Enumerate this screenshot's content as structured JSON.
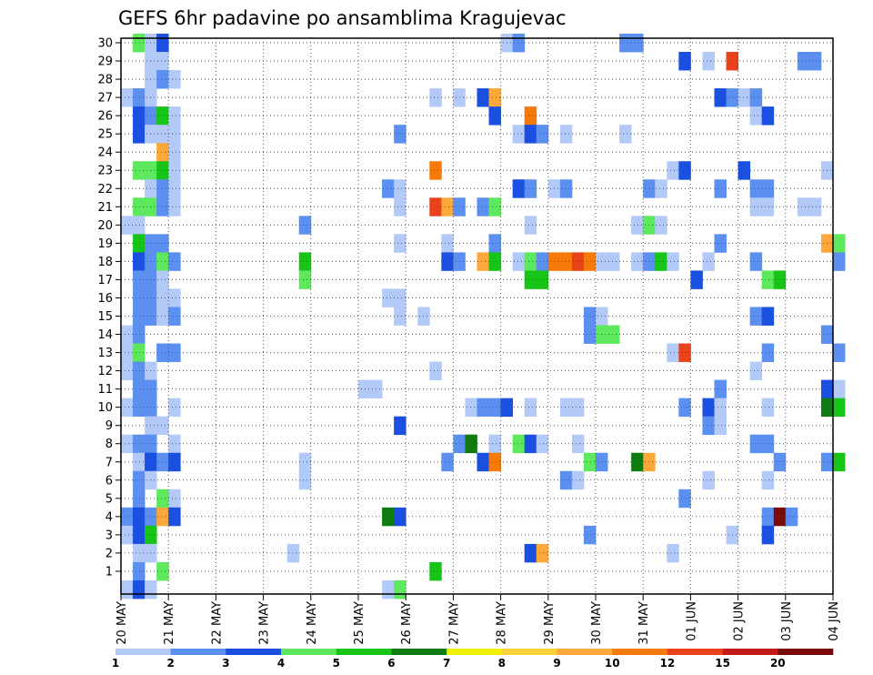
{
  "chart_data": {
    "type": "heatmap",
    "title": "GEFS 6hr padavine po ansamblima Kragujevac",
    "y_ticks": [
      "1",
      "2",
      "3",
      "4",
      "5",
      "6",
      "7",
      "8",
      "9",
      "10",
      "11",
      "12",
      "13",
      "14",
      "15",
      "16",
      "17",
      "18",
      "19",
      "20",
      "21",
      "22",
      "23",
      "24",
      "25",
      "26",
      "27",
      "28",
      "29",
      "30"
    ],
    "x_ticks": [
      "20 MAY",
      "21 MAY",
      "22 MAY",
      "23 MAY",
      "24 MAY",
      "25 MAY",
      "26 MAY",
      "27 MAY",
      "28 MAY",
      "29 MAY",
      "30 MAY",
      "31 MAY",
      "01 JUN",
      "02 JUN",
      "03 JUN",
      "04 JUN"
    ],
    "x_range": [
      "2024-05-20 00Z",
      "2024-06-04 00Z"
    ],
    "y_range": [
      0,
      30
    ],
    "time_step_hours": 6,
    "grid": "dotted",
    "legend_position": "bottom",
    "colorbar": {
      "labels": [
        "1",
        "2",
        "3",
        "4",
        "5",
        "6",
        "7",
        "8",
        "9",
        "10",
        "12",
        "15",
        "20"
      ],
      "colors": [
        "#b3c9f7",
        "#5b8ff0",
        "#1b4fe0",
        "#5ee85e",
        "#17c417",
        "#0f7a0f",
        "#f0f000",
        "#fcd23a",
        "#fca83a",
        "#f57a0a",
        "#e8431a",
        "#c41a1a",
        "#7a0a0a"
      ]
    },
    "cells": [
      [
        30,
        "20 MAY 06Z",
        4
      ],
      [
        30,
        "20 MAY 12Z",
        1
      ],
      [
        30,
        "20 MAY 18Z",
        3
      ],
      [
        30,
        "28 MAY 00Z",
        1
      ],
      [
        30,
        "28 MAY 06Z",
        2
      ],
      [
        30,
        "30 MAY 12Z",
        2
      ],
      [
        30,
        "30 MAY 18Z",
        2
      ],
      [
        29,
        "20 MAY 12Z",
        1
      ],
      [
        29,
        "20 MAY 18Z",
        1
      ],
      [
        29,
        "31 MAY 18Z",
        3
      ],
      [
        29,
        "01 JUN 06Z",
        1
      ],
      [
        29,
        "01 JUN 18Z",
        13
      ],
      [
        29,
        "03 JUN 06Z",
        2
      ],
      [
        29,
        "03 JUN 12Z",
        2
      ],
      [
        28,
        "20 MAY 12Z",
        1
      ],
      [
        28,
        "20 MAY 18Z",
        2
      ],
      [
        28,
        "21 MAY 00Z",
        1
      ],
      [
        27,
        "20 MAY 00Z",
        1
      ],
      [
        27,
        "20 MAY 06Z",
        2
      ],
      [
        27,
        "20 MAY 12Z",
        1
      ],
      [
        27,
        "26 MAY 12Z",
        1
      ],
      [
        27,
        "27 MAY 00Z",
        1
      ],
      [
        27,
        "27 MAY 12Z",
        3
      ],
      [
        27,
        "27 MAY 18Z",
        9
      ],
      [
        27,
        "01 JUN 12Z",
        3
      ],
      [
        27,
        "01 JUN 18Z",
        2
      ],
      [
        27,
        "02 JUN 00Z",
        1
      ],
      [
        27,
        "02 JUN 06Z",
        2
      ],
      [
        26,
        "20 MAY 06Z",
        3
      ],
      [
        26,
        "20 MAY 12Z",
        2
      ],
      [
        26,
        "20 MAY 18Z",
        5
      ],
      [
        26,
        "21 MAY 00Z",
        1
      ],
      [
        26,
        "27 MAY 18Z",
        3
      ],
      [
        26,
        "28 MAY 12Z",
        10
      ],
      [
        26,
        "02 JUN 06Z",
        1
      ],
      [
        26,
        "02 JUN 12Z",
        3
      ],
      [
        25,
        "20 MAY 06Z",
        3
      ],
      [
        25,
        "20 MAY 12Z",
        1
      ],
      [
        25,
        "20 MAY 18Z",
        1
      ],
      [
        25,
        "21 MAY 00Z",
        1
      ],
      [
        25,
        "25 MAY 18Z",
        2
      ],
      [
        25,
        "28 MAY 06Z",
        1
      ],
      [
        25,
        "28 MAY 12Z",
        3
      ],
      [
        25,
        "28 MAY 18Z",
        2
      ],
      [
        25,
        "29 MAY 06Z",
        1
      ],
      [
        25,
        "30 MAY 12Z",
        1
      ],
      [
        24,
        "20 MAY 18Z",
        9
      ],
      [
        24,
        "21 MAY 00Z",
        1
      ],
      [
        23,
        "20 MAY 06Z",
        4
      ],
      [
        23,
        "20 MAY 12Z",
        4
      ],
      [
        23,
        "20 MAY 18Z",
        5
      ],
      [
        23,
        "21 MAY 00Z",
        1
      ],
      [
        23,
        "26 MAY 12Z",
        10
      ],
      [
        23,
        "31 MAY 12Z",
        1
      ],
      [
        23,
        "31 MAY 18Z",
        3
      ],
      [
        23,
        "02 JUN 00Z",
        3
      ],
      [
        23,
        "03 JUN 18Z",
        1
      ],
      [
        22,
        "20 MAY 12Z",
        1
      ],
      [
        22,
        "20 MAY 18Z",
        2
      ],
      [
        22,
        "21 MAY 00Z",
        1
      ],
      [
        22,
        "25 MAY 12Z",
        2
      ],
      [
        22,
        "25 MAY 18Z",
        1
      ],
      [
        22,
        "28 MAY 06Z",
        3
      ],
      [
        22,
        "28 MAY 12Z",
        2
      ],
      [
        22,
        "29 MAY 00Z",
        1
      ],
      [
        22,
        "29 MAY 06Z",
        2
      ],
      [
        22,
        "31 MAY 00Z",
        2
      ],
      [
        22,
        "31 MAY 06Z",
        1
      ],
      [
        22,
        "01 JUN 12Z",
        2
      ],
      [
        22,
        "02 JUN 06Z",
        2
      ],
      [
        22,
        "02 JUN 12Z",
        2
      ],
      [
        21,
        "20 MAY 06Z",
        4
      ],
      [
        21,
        "20 MAY 12Z",
        4
      ],
      [
        21,
        "20 MAY 18Z",
        2
      ],
      [
        21,
        "21 MAY 00Z",
        1
      ],
      [
        21,
        "25 MAY 18Z",
        1
      ],
      [
        21,
        "26 MAY 12Z",
        12
      ],
      [
        21,
        "26 MAY 18Z",
        9
      ],
      [
        21,
        "27 MAY 00Z",
        2
      ],
      [
        21,
        "27 MAY 12Z",
        2
      ],
      [
        21,
        "27 MAY 18Z",
        4
      ],
      [
        21,
        "02 JUN 06Z",
        1
      ],
      [
        21,
        "02 JUN 12Z",
        1
      ],
      [
        21,
        "03 JUN 06Z",
        1
      ],
      [
        21,
        "03 JUN 12Z",
        1
      ],
      [
        20,
        "20 MAY 00Z",
        1
      ],
      [
        20,
        "20 MAY 06Z",
        1
      ],
      [
        20,
        "23 MAY 18Z",
        2
      ],
      [
        20,
        "28 MAY 12Z",
        1
      ],
      [
        20,
        "30 MAY 18Z",
        1
      ],
      [
        20,
        "31 MAY 00Z",
        4
      ],
      [
        20,
        "31 MAY 06Z",
        1
      ],
      [
        19,
        "20 MAY 06Z",
        5
      ],
      [
        19,
        "20 MAY 12Z",
        2
      ],
      [
        19,
        "20 MAY 18Z",
        2
      ],
      [
        19,
        "25 MAY 18Z",
        1
      ],
      [
        19,
        "26 MAY 18Z",
        1
      ],
      [
        19,
        "27 MAY 18Z",
        2
      ],
      [
        19,
        "01 JUN 12Z",
        2
      ],
      [
        19,
        "03 JUN 18Z",
        9
      ],
      [
        19,
        "04 JUN 00Z",
        4
      ],
      [
        18,
        "20 MAY 06Z",
        3
      ],
      [
        18,
        "20 MAY 12Z",
        2
      ],
      [
        18,
        "20 MAY 18Z",
        4
      ],
      [
        18,
        "21 MAY 00Z",
        2
      ],
      [
        18,
        "23 MAY 18Z",
        5
      ],
      [
        18,
        "26 MAY 18Z",
        3
      ],
      [
        18,
        "27 MAY 00Z",
        2
      ],
      [
        18,
        "27 MAY 12Z",
        9
      ],
      [
        18,
        "27 MAY 18Z",
        5
      ],
      [
        18,
        "28 MAY 06Z",
        1
      ],
      [
        18,
        "28 MAY 12Z",
        4
      ],
      [
        18,
        "28 MAY 18Z",
        2
      ],
      [
        18,
        "29 MAY 00Z",
        10
      ],
      [
        18,
        "29 MAY 06Z",
        10
      ],
      [
        18,
        "29 MAY 12Z",
        13
      ],
      [
        18,
        "29 MAY 18Z",
        10
      ],
      [
        18,
        "30 MAY 00Z",
        1
      ],
      [
        18,
        "30 MAY 06Z",
        1
      ],
      [
        18,
        "30 MAY 18Z",
        1
      ],
      [
        18,
        "31 MAY 00Z",
        2
      ],
      [
        18,
        "31 MAY 06Z",
        5
      ],
      [
        18,
        "31 MAY 12Z",
        1
      ],
      [
        18,
        "01 JUN 06Z",
        1
      ],
      [
        18,
        "02 JUN 06Z",
        2
      ],
      [
        18,
        "04 JUN 00Z",
        2
      ],
      [
        17,
        "20 MAY 06Z",
        2
      ],
      [
        17,
        "20 MAY 12Z",
        2
      ],
      [
        17,
        "20 MAY 18Z",
        1
      ],
      [
        17,
        "23 MAY 18Z",
        4
      ],
      [
        17,
        "28 MAY 12Z",
        5
      ],
      [
        17,
        "28 MAY 18Z",
        5
      ],
      [
        17,
        "01 JUN 00Z",
        3
      ],
      [
        17,
        "02 JUN 12Z",
        4
      ],
      [
        17,
        "02 JUN 18Z",
        5
      ],
      [
        16,
        "20 MAY 06Z",
        2
      ],
      [
        16,
        "20 MAY 12Z",
        2
      ],
      [
        16,
        "20 MAY 18Z",
        1
      ],
      [
        16,
        "21 MAY 00Z",
        1
      ],
      [
        16,
        "25 MAY 12Z",
        1
      ],
      [
        16,
        "25 MAY 18Z",
        1
      ],
      [
        15,
        "20 MAY 06Z",
        2
      ],
      [
        15,
        "20 MAY 12Z",
        2
      ],
      [
        15,
        "20 MAY 18Z",
        1
      ],
      [
        15,
        "21 MAY 00Z",
        2
      ],
      [
        15,
        "25 MAY 18Z",
        1
      ],
      [
        15,
        "26 MAY 06Z",
        1
      ],
      [
        15,
        "29 MAY 18Z",
        2
      ],
      [
        15,
        "30 MAY 00Z",
        1
      ],
      [
        15,
        "02 JUN 06Z",
        2
      ],
      [
        15,
        "02 JUN 12Z",
        3
      ],
      [
        14,
        "20 MAY 00Z",
        1
      ],
      [
        14,
        "20 MAY 06Z",
        2
      ],
      [
        14,
        "29 MAY 18Z",
        2
      ],
      [
        14,
        "30 MAY 00Z",
        4
      ],
      [
        14,
        "30 MAY 06Z",
        4
      ],
      [
        14,
        "03 JUN 18Z",
        2
      ],
      [
        13,
        "20 MAY 00Z",
        1
      ],
      [
        13,
        "20 MAY 06Z",
        4
      ],
      [
        13,
        "20 MAY 18Z",
        2
      ],
      [
        13,
        "21 MAY 00Z",
        2
      ],
      [
        13,
        "31 MAY 12Z",
        1
      ],
      [
        13,
        "31 MAY 18Z",
        12
      ],
      [
        13,
        "02 JUN 12Z",
        2
      ],
      [
        13,
        "04 JUN 00Z",
        2
      ],
      [
        12,
        "20 MAY 00Z",
        1
      ],
      [
        12,
        "20 MAY 06Z",
        2
      ],
      [
        12,
        "20 MAY 12Z",
        1
      ],
      [
        12,
        "26 MAY 12Z",
        1
      ],
      [
        12,
        "02 JUN 06Z",
        1
      ],
      [
        11,
        "20 MAY 06Z",
        2
      ],
      [
        11,
        "20 MAY 12Z",
        2
      ],
      [
        11,
        "25 MAY 00Z",
        1
      ],
      [
        11,
        "25 MAY 06Z",
        1
      ],
      [
        11,
        "01 JUN 12Z",
        2
      ],
      [
        11,
        "03 JUN 18Z",
        3
      ],
      [
        11,
        "04 JUN 00Z",
        1
      ],
      [
        10,
        "20 MAY 00Z",
        1
      ],
      [
        10,
        "20 MAY 06Z",
        2
      ],
      [
        10,
        "20 MAY 12Z",
        2
      ],
      [
        10,
        "21 MAY 00Z",
        1
      ],
      [
        10,
        "27 MAY 06Z",
        1
      ],
      [
        10,
        "27 MAY 12Z",
        2
      ],
      [
        10,
        "27 MAY 18Z",
        2
      ],
      [
        10,
        "28 MAY 00Z",
        3
      ],
      [
        10,
        "28 MAY 12Z",
        1
      ],
      [
        10,
        "29 MAY 06Z",
        1
      ],
      [
        10,
        "29 MAY 12Z",
        1
      ],
      [
        10,
        "31 MAY 18Z",
        2
      ],
      [
        10,
        "01 JUN 06Z",
        3
      ],
      [
        10,
        "01 JUN 12Z",
        1
      ],
      [
        10,
        "02 JUN 12Z",
        1
      ],
      [
        10,
        "03 JUN 18Z",
        6
      ],
      [
        10,
        "04 JUN 00Z",
        5
      ],
      [
        9,
        "20 MAY 12Z",
        1
      ],
      [
        9,
        "20 MAY 18Z",
        1
      ],
      [
        9,
        "25 MAY 18Z",
        3
      ],
      [
        9,
        "01 JUN 06Z",
        2
      ],
      [
        9,
        "01 JUN 12Z",
        1
      ],
      [
        8,
        "20 MAY 00Z",
        1
      ],
      [
        8,
        "20 MAY 06Z",
        2
      ],
      [
        8,
        "20 MAY 12Z",
        2
      ],
      [
        8,
        "21 MAY 00Z",
        1
      ],
      [
        8,
        "27 MAY 00Z",
        2
      ],
      [
        8,
        "27 MAY 06Z",
        6
      ],
      [
        8,
        "27 MAY 18Z",
        1
      ],
      [
        8,
        "28 MAY 06Z",
        4
      ],
      [
        8,
        "28 MAY 12Z",
        3
      ],
      [
        8,
        "28 MAY 18Z",
        1
      ],
      [
        8,
        "29 MAY 12Z",
        1
      ],
      [
        8,
        "02 JUN 06Z",
        2
      ],
      [
        8,
        "02 JUN 12Z",
        2
      ],
      [
        7,
        "20 MAY 06Z",
        1
      ],
      [
        7,
        "20 MAY 12Z",
        3
      ],
      [
        7,
        "20 MAY 18Z",
        2
      ],
      [
        7,
        "21 MAY 00Z",
        3
      ],
      [
        7,
        "23 MAY 18Z",
        1
      ],
      [
        7,
        "26 MAY 18Z",
        2
      ],
      [
        7,
        "27 MAY 12Z",
        3
      ],
      [
        7,
        "27 MAY 18Z",
        10
      ],
      [
        7,
        "29 MAY 18Z",
        4
      ],
      [
        7,
        "30 MAY 00Z",
        2
      ],
      [
        7,
        "30 MAY 18Z",
        6
      ],
      [
        7,
        "31 MAY 00Z",
        9
      ],
      [
        7,
        "02 JUN 18Z",
        2
      ],
      [
        7,
        "03 JUN 18Z",
        2
      ],
      [
        7,
        "04 JUN 00Z",
        5
      ],
      [
        6,
        "20 MAY 06Z",
        2
      ],
      [
        6,
        "20 MAY 12Z",
        1
      ],
      [
        6,
        "23 MAY 18Z",
        1
      ],
      [
        6,
        "29 MAY 06Z",
        2
      ],
      [
        6,
        "29 MAY 12Z",
        1
      ],
      [
        6,
        "01 JUN 06Z",
        1
      ],
      [
        6,
        "02 JUN 12Z",
        1
      ],
      [
        5,
        "20 MAY 06Z",
        2
      ],
      [
        5,
        "20 MAY 18Z",
        4
      ],
      [
        5,
        "21 MAY 00Z",
        1
      ],
      [
        5,
        "31 MAY 18Z",
        2
      ],
      [
        4,
        "20 MAY 00Z",
        2
      ],
      [
        4,
        "20 MAY 06Z",
        3
      ],
      [
        4,
        "20 MAY 12Z",
        2
      ],
      [
        4,
        "20 MAY 18Z",
        9
      ],
      [
        4,
        "21 MAY 00Z",
        3
      ],
      [
        4,
        "25 MAY 12Z",
        6
      ],
      [
        4,
        "25 MAY 18Z",
        3
      ],
      [
        4,
        "02 JUN 12Z",
        2
      ],
      [
        4,
        "02 JUN 18Z",
        20
      ],
      [
        4,
        "03 JUN 00Z",
        2
      ],
      [
        3,
        "20 MAY 00Z",
        1
      ],
      [
        3,
        "20 MAY 06Z",
        3
      ],
      [
        3,
        "20 MAY 12Z",
        5
      ],
      [
        3,
        "29 MAY 18Z",
        2
      ],
      [
        3,
        "01 JUN 18Z",
        1
      ],
      [
        3,
        "02 JUN 12Z",
        3
      ],
      [
        2,
        "20 MAY 06Z",
        1
      ],
      [
        2,
        "20 MAY 12Z",
        1
      ],
      [
        2,
        "23 MAY 12Z",
        1
      ],
      [
        2,
        "28 MAY 12Z",
        3
      ],
      [
        2,
        "28 MAY 18Z",
        9
      ],
      [
        2,
        "31 MAY 12Z",
        1
      ],
      [
        1,
        "20 MAY 06Z",
        2
      ],
      [
        1,
        "20 MAY 18Z",
        4
      ],
      [
        1,
        "26 MAY 12Z",
        5
      ],
      [
        0,
        "20 MAY 00Z",
        1
      ],
      [
        0,
        "20 MAY 06Z",
        3
      ],
      [
        0,
        "20 MAY 12Z",
        1
      ],
      [
        0,
        "25 MAY 12Z",
        1
      ],
      [
        0,
        "25 MAY 18Z",
        4
      ]
    ]
  }
}
